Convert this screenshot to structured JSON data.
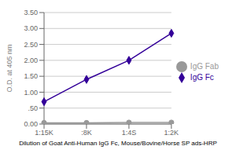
{
  "chart_data": {
    "type": "line",
    "categories": [
      "1:15K",
      ":8K",
      "1:4S",
      "1:2K"
    ],
    "series": [
      {
        "name": "IgG Fc",
        "color": "#330099",
        "marker": "diamond",
        "values": [
          0.7,
          1.4,
          2.0,
          2.85
        ]
      },
      {
        "name": "IgG Fab",
        "color": "#999999",
        "marker": "circle",
        "values": [
          0.04,
          0.04,
          0.05,
          0.05
        ]
      }
    ],
    "xlabel": "Dilution of Goat Anti-Human IgG Fc, Mouse/Bovine/Horse SP ads-HRP",
    "ylabel": "O.D. at 405 nm",
    "ylim": [
      0.0,
      3.5
    ],
    "yticks": [
      {
        "value": 0.0,
        "label": "0.00"
      },
      {
        "value": 0.5,
        "label": ".50"
      },
      {
        "value": 1.0,
        "label": "1.00"
      },
      {
        "value": 1.5,
        "label": "1.50"
      },
      {
        "value": 2.0,
        "label": "2.00"
      },
      {
        "value": 2.5,
        "label": "2.50"
      },
      {
        "value": 3.0,
        "label": "3.00"
      },
      {
        "value": 3.5,
        "label": "3.50"
      }
    ],
    "grid": true,
    "legend": "right"
  }
}
